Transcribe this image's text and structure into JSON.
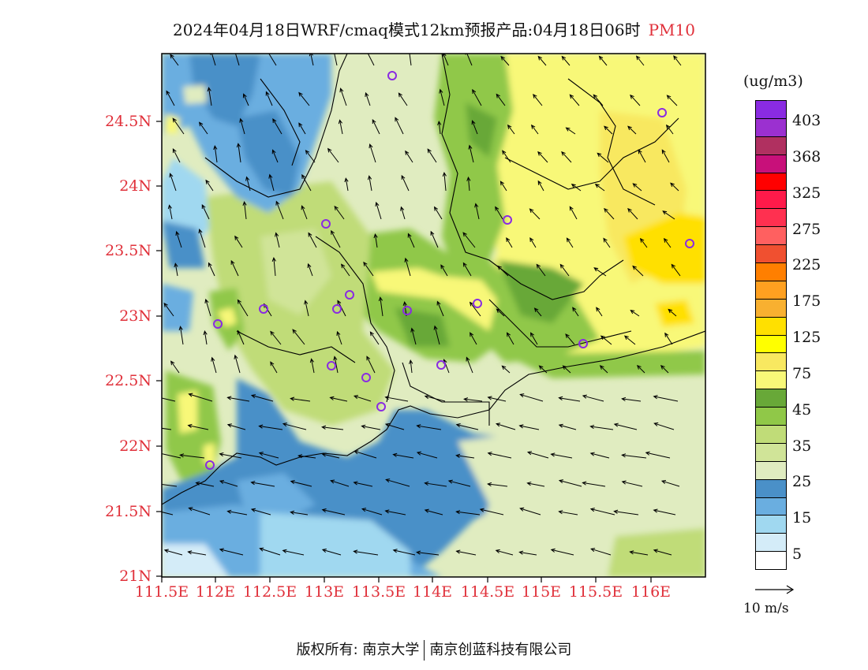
{
  "title": {
    "main": "2024年04月18日WRF/cmaq模式12km预报产品:04月18日06时",
    "variable": "PM10"
  },
  "latitude_labels": [
    "24.5N",
    "24N",
    "23.5N",
    "23N",
    "22.5N",
    "22N",
    "21.5N",
    "21N"
  ],
  "longitude_labels": [
    "111.5E",
    "112E",
    "112.5E",
    "113E",
    "113.5E",
    "114E",
    "114.5E",
    "115E",
    "115.5E",
    "116E"
  ],
  "legend": {
    "unit": "(ug/m3)",
    "labels": [
      "403",
      "368",
      "325",
      "275",
      "225",
      "175",
      "125",
      "75",
      "45",
      "35",
      "25",
      "15",
      "5"
    ],
    "colors": [
      "#8a2be2",
      "#9b30d0",
      "#b03060",
      "#c8107a",
      "#ff0000",
      "#ff1a4a",
      "#ff3050",
      "#ff6060",
      "#f05030",
      "#ff7f00",
      "#ffa020",
      "#f8b030",
      "#ffe000",
      "#ffff00",
      "#f8e860",
      "#f8f878",
      "#68a838",
      "#90c848",
      "#c0dc78",
      "#d0e498",
      "#e0ecc0",
      "#4a90c8",
      "#6aaee0",
      "#a0d8f0",
      "#d4ecf8",
      "#ffffff"
    ]
  },
  "wind_reference": {
    "label": "10 m/s"
  },
  "footer": {
    "left": "版权所有: 南京大学",
    "right": "南京创蓝科技有限公司"
  }
}
